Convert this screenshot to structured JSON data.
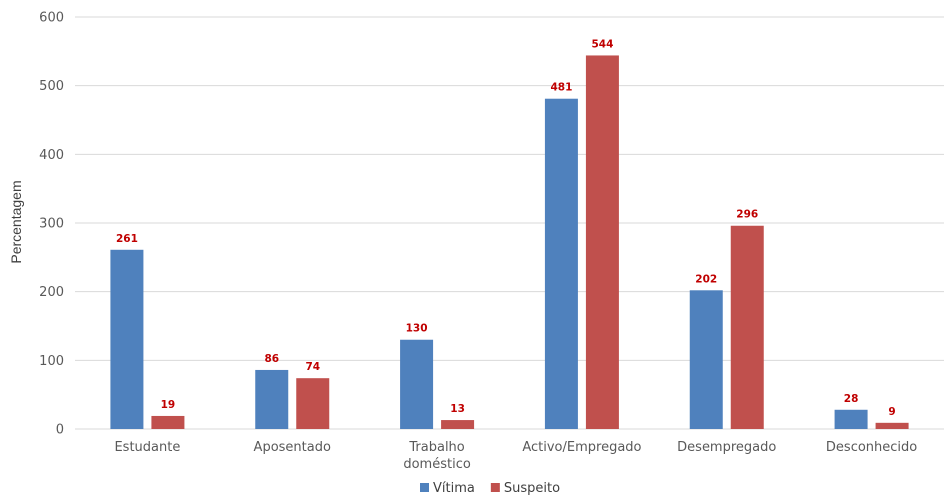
{
  "chart_data": {
    "type": "bar",
    "title": "",
    "xlabel": "",
    "ylabel": "Percentagem",
    "ylim": [
      0,
      600
    ],
    "yticks": [
      0,
      100,
      200,
      300,
      400,
      500,
      600
    ],
    "grid": true,
    "legend_position": "bottom",
    "categories": [
      [
        "Estudante"
      ],
      [
        "Aposentado"
      ],
      [
        "Trabalho",
        "doméstico"
      ],
      [
        "Activo/Empregado"
      ],
      [
        "Desempregado"
      ],
      [
        "Desconhecido"
      ]
    ],
    "series": [
      {
        "name": "Vítima",
        "color": "#4f81bd",
        "values": [
          261,
          86,
          130,
          481,
          202,
          28
        ]
      },
      {
        "name": "Suspeito",
        "color": "#c0504d",
        "values": [
          19,
          74,
          13,
          544,
          296,
          9
        ]
      }
    ],
    "data_label_color": "#c00000"
  }
}
